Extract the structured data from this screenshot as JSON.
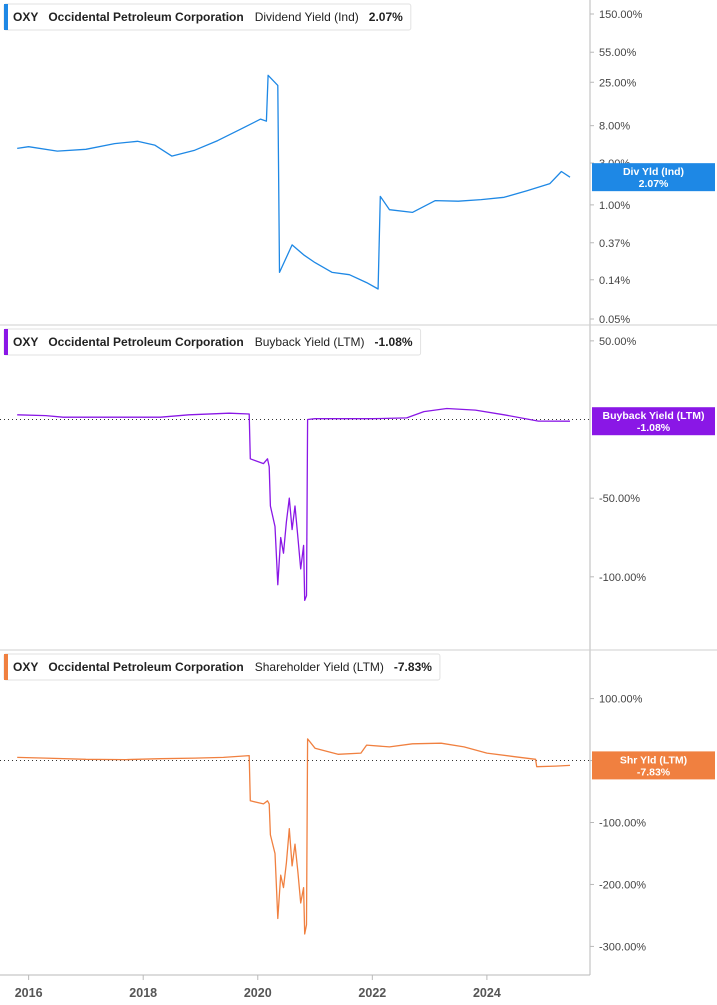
{
  "chart_data": [
    {
      "type": "line",
      "ticker": "OXY",
      "company": "Occidental Petroleum Corporation",
      "metric": "Dividend Yield (Ind)",
      "current_value": "2.07%",
      "tag_label": "Div Yld (Ind)",
      "tag_value": "2.07%",
      "color": "#1e88e5",
      "scale": "log",
      "yticks": [
        {
          "value": 150,
          "label": "150.00%"
        },
        {
          "value": 55,
          "label": "55.00%"
        },
        {
          "value": 25,
          "label": "25.00%"
        },
        {
          "value": 8,
          "label": "8.00%"
        },
        {
          "value": 3,
          "label": "3.00%"
        },
        {
          "value": 1,
          "label": "1.00%"
        },
        {
          "value": 0.37,
          "label": "0.37%"
        },
        {
          "value": 0.14,
          "label": "0.14%"
        },
        {
          "value": 0.05,
          "label": "0.05%"
        }
      ],
      "series": [
        {
          "x": [
            2015.8,
            2016.0,
            2016.5,
            2017.0,
            2017.5,
            2017.9,
            2018.2,
            2018.5,
            2018.9,
            2019.3,
            2019.7,
            2020.05,
            2020.15,
            2020.18,
            2020.35,
            2020.38,
            2020.6,
            2020.8,
            2021.0,
            2021.3,
            2021.6,
            2021.9,
            2022.1,
            2022.14,
            2022.3,
            2022.7,
            2023.1,
            2023.5,
            2023.9,
            2024.3,
            2024.7,
            2025.1,
            2025.3,
            2025.45
          ],
          "y": [
            4.4,
            4.6,
            4.1,
            4.3,
            5.0,
            5.3,
            4.8,
            3.6,
            4.2,
            5.4,
            7.3,
            9.5,
            9.0,
            30.0,
            23.0,
            0.17,
            0.35,
            0.27,
            0.22,
            0.17,
            0.16,
            0.13,
            0.11,
            1.25,
            0.88,
            0.82,
            1.12,
            1.1,
            1.15,
            1.22,
            1.45,
            1.75,
            2.4,
            2.07
          ]
        }
      ]
    },
    {
      "type": "line",
      "ticker": "OXY",
      "company": "Occidental Petroleum Corporation",
      "metric": "Buyback Yield (LTM)",
      "current_value": "-1.08%",
      "tag_label": "Buyback Yield (LTM)",
      "tag_value": "-1.08%",
      "color": "#8a17e6",
      "scale": "linear",
      "ylim": [
        -130,
        55
      ],
      "yticks": [
        {
          "value": 50,
          "label": "50.00%"
        },
        {
          "value": -50,
          "label": "-50.00%"
        },
        {
          "value": -100,
          "label": "-100.00%"
        }
      ],
      "series": [
        {
          "x": [
            2015.8,
            2016.3,
            2016.6,
            2017.5,
            2018.3,
            2018.8,
            2019.5,
            2019.85,
            2019.87,
            2020.1,
            2020.17,
            2020.2,
            2020.22,
            2020.3,
            2020.35,
            2020.4,
            2020.45,
            2020.5,
            2020.55,
            2020.6,
            2020.65,
            2020.7,
            2020.75,
            2020.8,
            2020.82,
            2020.85,
            2020.87,
            2021.0,
            2022.0,
            2022.6,
            2022.9,
            2023.3,
            2023.8,
            2024.3,
            2024.9,
            2025.45
          ],
          "y": [
            3,
            2.5,
            1.5,
            1.5,
            1.5,
            3,
            4,
            3.5,
            -25,
            -28,
            -25,
            -30,
            -55,
            -68,
            -105,
            -75,
            -85,
            -65,
            -50,
            -70,
            -55,
            -75,
            -95,
            -80,
            -115,
            -112,
            0,
            0.5,
            0.5,
            1,
            5,
            7,
            6,
            3,
            -1,
            -1.08
          ]
        }
      ]
    },
    {
      "type": "line",
      "ticker": "OXY",
      "company": "Occidental Petroleum Corporation",
      "metric": "Shareholder Yield (LTM)",
      "current_value": "-7.83%",
      "tag_label": "Shr Yld (LTM)",
      "tag_value": "-7.83%",
      "color": "#f08040",
      "scale": "linear",
      "ylim": [
        -330,
        130
      ],
      "yticks": [
        {
          "value": 100,
          "label": "100.00%"
        },
        {
          "value": 0,
          "label": "0.00%"
        },
        {
          "value": -100,
          "label": "-100.00%"
        },
        {
          "value": -200,
          "label": "-200.00%"
        },
        {
          "value": -300,
          "label": "-300.00%"
        }
      ],
      "series": [
        {
          "x": [
            2015.8,
            2016.3,
            2017.0,
            2017.7,
            2018.3,
            2018.9,
            2019.4,
            2019.85,
            2019.87,
            2020.1,
            2020.17,
            2020.2,
            2020.22,
            2020.3,
            2020.35,
            2020.4,
            2020.45,
            2020.5,
            2020.55,
            2020.6,
            2020.65,
            2020.7,
            2020.75,
            2020.8,
            2020.82,
            2020.85,
            2020.87,
            2021.0,
            2021.4,
            2021.8,
            2021.9,
            2022.3,
            2022.7,
            2023.2,
            2023.6,
            2024.0,
            2024.5,
            2024.85,
            2024.87,
            2025.2,
            2025.45
          ],
          "y": [
            5,
            4,
            2,
            1.5,
            3,
            4,
            5,
            8,
            -65,
            -70,
            -65,
            -70,
            -120,
            -150,
            -255,
            -185,
            -205,
            -165,
            -110,
            -170,
            -135,
            -180,
            -230,
            -205,
            -280,
            -265,
            35,
            20,
            10,
            12,
            25,
            22,
            27,
            28,
            22,
            12,
            6,
            2,
            -10,
            -9,
            -7.83
          ]
        }
      ]
    }
  ],
  "x_axis": {
    "xlim": [
      2015.5,
      2025.8
    ],
    "ticks": [
      {
        "value": 2016,
        "label": "2016"
      },
      {
        "value": 2018,
        "label": "2018"
      },
      {
        "value": 2020,
        "label": "2020"
      },
      {
        "value": 2022,
        "label": "2022"
      },
      {
        "value": 2024,
        "label": "2024"
      }
    ]
  }
}
